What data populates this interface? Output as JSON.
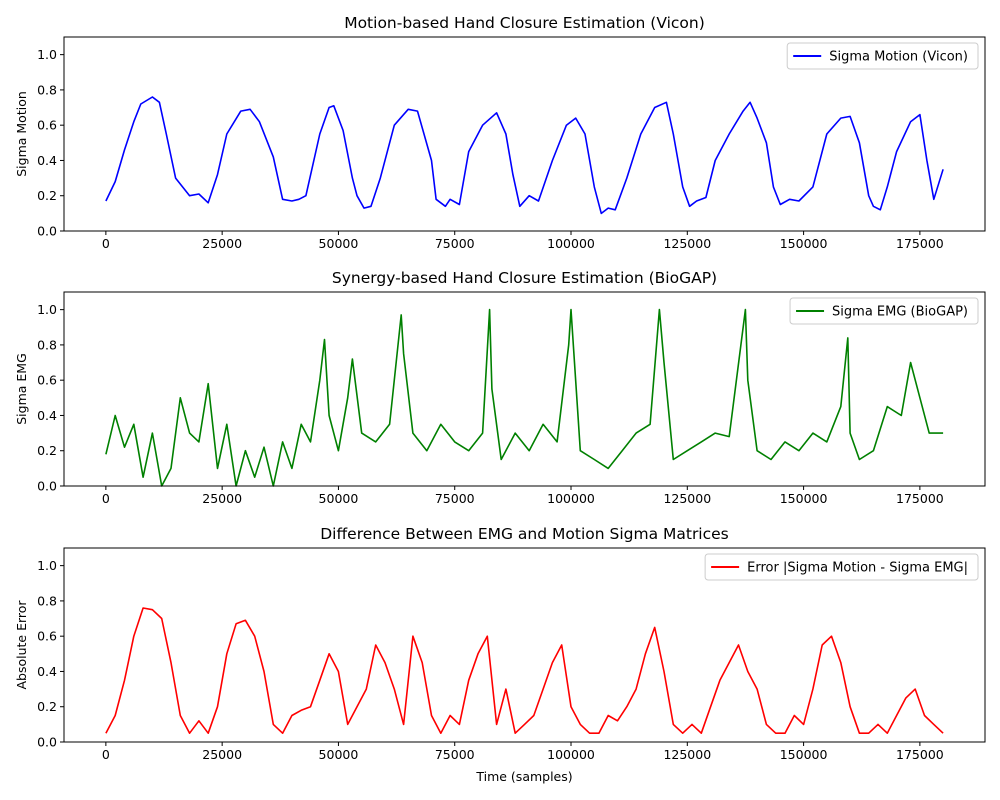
{
  "chart_data": [
    {
      "type": "line",
      "title": "Motion-based Hand Closure Estimation (Vicon)",
      "xlabel": "",
      "ylabel": "Sigma Motion",
      "xlim": [
        -9000,
        189000
      ],
      "ylim": [
        0,
        1.1
      ],
      "xticks": [
        0,
        25000,
        50000,
        75000,
        100000,
        125000,
        150000,
        175000
      ],
      "yticks": [
        0.0,
        0.2,
        0.4,
        0.6,
        0.8,
        1.0
      ],
      "xtick_labels": [
        "0",
        "25000",
        "50000",
        "75000",
        "100000",
        "125000",
        "150000",
        "175000"
      ],
      "ytick_labels": [
        "0.0",
        "0.2",
        "0.4",
        "0.6",
        "0.8",
        "1.0"
      ],
      "legend": "top-right",
      "series": [
        {
          "name": "Sigma Motion (Vicon)",
          "color": "#0000ff",
          "x": [
            0,
            2000,
            4000,
            6000,
            7500,
            10000,
            11500,
            13000,
            15000,
            18000,
            20000,
            22000,
            24000,
            26000,
            29000,
            31000,
            33000,
            36000,
            38000,
            40000,
            41500,
            43000,
            46000,
            48000,
            49000,
            51000,
            53000,
            54000,
            55500,
            57000,
            59000,
            62000,
            65000,
            67000,
            70000,
            71000,
            73000,
            74000,
            76000,
            78000,
            81000,
            84000,
            86000,
            87500,
            89000,
            91000,
            93000,
            96000,
            99000,
            101000,
            103000,
            105000,
            106500,
            108000,
            109500,
            112000,
            115000,
            118000,
            120500,
            122000,
            124000,
            125500,
            127000,
            129000,
            131000,
            134000,
            137000,
            138500,
            140000,
            142000,
            143500,
            145000,
            147000,
            149000,
            152000,
            155000,
            158000,
            160000,
            162000,
            164000,
            165000,
            166500,
            168000,
            170000,
            173000,
            175000,
            176500,
            178000,
            180000
          ],
          "y": [
            0.17,
            0.28,
            0.46,
            0.62,
            0.72,
            0.76,
            0.73,
            0.55,
            0.3,
            0.2,
            0.21,
            0.16,
            0.32,
            0.55,
            0.68,
            0.69,
            0.62,
            0.42,
            0.18,
            0.17,
            0.18,
            0.2,
            0.55,
            0.7,
            0.71,
            0.57,
            0.3,
            0.2,
            0.13,
            0.14,
            0.3,
            0.6,
            0.69,
            0.68,
            0.4,
            0.18,
            0.14,
            0.18,
            0.15,
            0.45,
            0.6,
            0.67,
            0.55,
            0.32,
            0.14,
            0.2,
            0.17,
            0.4,
            0.6,
            0.64,
            0.55,
            0.25,
            0.1,
            0.13,
            0.12,
            0.3,
            0.55,
            0.7,
            0.73,
            0.55,
            0.25,
            0.14,
            0.17,
            0.19,
            0.4,
            0.55,
            0.68,
            0.73,
            0.64,
            0.5,
            0.25,
            0.15,
            0.18,
            0.17,
            0.25,
            0.55,
            0.64,
            0.65,
            0.5,
            0.2,
            0.14,
            0.12,
            0.25,
            0.45,
            0.62,
            0.66,
            0.4,
            0.18,
            0.35
          ]
        }
      ]
    },
    {
      "type": "line",
      "title": "Synergy-based Hand Closure Estimation (BioGAP)",
      "xlabel": "",
      "ylabel": "Sigma EMG",
      "xlim": [
        -9000,
        189000
      ],
      "ylim": [
        0,
        1.1
      ],
      "xticks": [
        0,
        25000,
        50000,
        75000,
        100000,
        125000,
        150000,
        175000
      ],
      "yticks": [
        0.0,
        0.2,
        0.4,
        0.6,
        0.8,
        1.0
      ],
      "xtick_labels": [
        "0",
        "25000",
        "50000",
        "75000",
        "100000",
        "125000",
        "150000",
        "175000"
      ],
      "ytick_labels": [
        "0.0",
        "0.2",
        "0.4",
        "0.6",
        "0.8",
        "1.0"
      ],
      "legend": "top-right",
      "series": [
        {
          "name": "Sigma EMG (BioGAP)",
          "color": "#008000",
          "x": [
            0,
            2000,
            4000,
            6000,
            8000,
            10000,
            12000,
            14000,
            16000,
            18000,
            20000,
            22000,
            24000,
            26000,
            28000,
            30000,
            32000,
            34000,
            36000,
            38000,
            40000,
            42000,
            44000,
            46000,
            47000,
            48000,
            50000,
            52000,
            53000,
            55000,
            58000,
            61000,
            63500,
            64000,
            66000,
            69000,
            72000,
            75000,
            78000,
            81000,
            82500,
            83000,
            85000,
            88000,
            91000,
            94000,
            97000,
            99500,
            100000,
            102000,
            105000,
            108000,
            111000,
            114000,
            117000,
            119000,
            120000,
            122000,
            125000,
            128000,
            131000,
            134000,
            137500,
            138000,
            140000,
            143000,
            146000,
            149000,
            152000,
            155000,
            158000,
            159500,
            160000,
            162000,
            165000,
            168000,
            171000,
            173000,
            175000,
            177000,
            180000
          ],
          "y": [
            0.18,
            0.4,
            0.22,
            0.35,
            0.05,
            0.3,
            0.0,
            0.1,
            0.5,
            0.3,
            0.25,
            0.58,
            0.1,
            0.35,
            0.0,
            0.2,
            0.05,
            0.22,
            0.0,
            0.25,
            0.1,
            0.35,
            0.25,
            0.6,
            0.83,
            0.4,
            0.2,
            0.5,
            0.72,
            0.3,
            0.25,
            0.35,
            0.97,
            0.75,
            0.3,
            0.2,
            0.35,
            0.25,
            0.2,
            0.3,
            1.0,
            0.55,
            0.15,
            0.3,
            0.2,
            0.35,
            0.25,
            0.8,
            1.0,
            0.2,
            0.15,
            0.1,
            0.2,
            0.3,
            0.35,
            1.0,
            0.7,
            0.15,
            0.2,
            0.25,
            0.3,
            0.28,
            1.0,
            0.6,
            0.2,
            0.15,
            0.25,
            0.2,
            0.3,
            0.25,
            0.45,
            0.84,
            0.3,
            0.15,
            0.2,
            0.45,
            0.4,
            0.7,
            0.5,
            0.3,
            0.3
          ]
        }
      ]
    },
    {
      "type": "line",
      "title": "Difference Between EMG and Motion Sigma Matrices",
      "xlabel": "Time (samples)",
      "ylabel": "Absolute Error",
      "xlim": [
        -9000,
        189000
      ],
      "ylim": [
        0,
        1.1
      ],
      "xticks": [
        0,
        25000,
        50000,
        75000,
        100000,
        125000,
        150000,
        175000
      ],
      "yticks": [
        0.0,
        0.2,
        0.4,
        0.6,
        0.8,
        1.0
      ],
      "xtick_labels": [
        "0",
        "25000",
        "50000",
        "75000",
        "100000",
        "125000",
        "150000",
        "175000"
      ],
      "ytick_labels": [
        "0.0",
        "0.2",
        "0.4",
        "0.6",
        "0.8",
        "1.0"
      ],
      "legend": "top-right",
      "series": [
        {
          "name": "Error |Sigma Motion - Sigma EMG|",
          "color": "#ff0000",
          "x": [
            0,
            2000,
            4000,
            6000,
            8000,
            10000,
            12000,
            14000,
            16000,
            18000,
            20000,
            22000,
            24000,
            26000,
            28000,
            30000,
            32000,
            34000,
            36000,
            38000,
            40000,
            42000,
            44000,
            46000,
            48000,
            50000,
            52000,
            54000,
            56000,
            58000,
            60000,
            62000,
            64000,
            66000,
            68000,
            70000,
            72000,
            74000,
            76000,
            78000,
            80000,
            82000,
            84000,
            86000,
            88000,
            90000,
            92000,
            94000,
            96000,
            98000,
            100000,
            102000,
            104000,
            106000,
            108000,
            110000,
            112000,
            114000,
            116000,
            118000,
            120000,
            122000,
            124000,
            126000,
            128000,
            130000,
            132000,
            134000,
            136000,
            138000,
            140000,
            142000,
            144000,
            146000,
            148000,
            150000,
            152000,
            154000,
            156000,
            158000,
            160000,
            162000,
            164000,
            166000,
            168000,
            170000,
            172000,
            174000,
            176000,
            178000,
            180000
          ],
          "y": [
            0.05,
            0.15,
            0.35,
            0.6,
            0.76,
            0.75,
            0.7,
            0.45,
            0.15,
            0.05,
            0.12,
            0.05,
            0.2,
            0.5,
            0.67,
            0.69,
            0.6,
            0.4,
            0.1,
            0.05,
            0.15,
            0.18,
            0.2,
            0.35,
            0.5,
            0.4,
            0.1,
            0.2,
            0.3,
            0.55,
            0.45,
            0.3,
            0.1,
            0.6,
            0.45,
            0.15,
            0.05,
            0.15,
            0.1,
            0.35,
            0.5,
            0.6,
            0.1,
            0.3,
            0.05,
            0.1,
            0.15,
            0.3,
            0.45,
            0.55,
            0.2,
            0.1,
            0.05,
            0.05,
            0.15,
            0.12,
            0.2,
            0.3,
            0.5,
            0.65,
            0.4,
            0.1,
            0.05,
            0.1,
            0.05,
            0.2,
            0.35,
            0.45,
            0.55,
            0.4,
            0.3,
            0.1,
            0.05,
            0.05,
            0.15,
            0.1,
            0.3,
            0.55,
            0.6,
            0.45,
            0.2,
            0.05,
            0.05,
            0.1,
            0.05,
            0.15,
            0.25,
            0.3,
            0.15,
            0.1,
            0.05
          ]
        }
      ]
    }
  ]
}
